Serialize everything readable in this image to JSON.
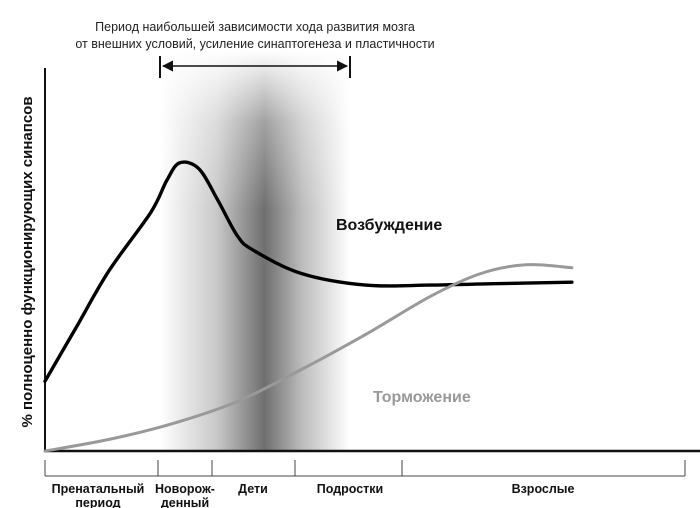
{
  "chart_data": {
    "type": "line",
    "annotation": {
      "lines": [
        "Период наибольшей зависимости хода развития мозга",
        "от внешних условий, усиление синаптогенеза и пластичности"
      ]
    },
    "ylabel": "% полноценно функционирующих синапсов",
    "periods": [
      {
        "lines": [
          "Пренатальный",
          "период"
        ]
      },
      {
        "lines": [
          "Новорож-",
          "денный"
        ]
      },
      {
        "lines": [
          "Дети"
        ]
      },
      {
        "lines": [
          "Подростки"
        ]
      },
      {
        "lines": [
          "Взрослые"
        ]
      }
    ],
    "x_range": [
      0,
      100
    ],
    "y_range": [
      0,
      100
    ],
    "grid": false,
    "series": [
      {
        "name": "Возбуждение",
        "color": "#000000",
        "points": [
          [
            0,
            24
          ],
          [
            5,
            43
          ],
          [
            10,
            62
          ],
          [
            16.5,
            82
          ],
          [
            19,
            93
          ],
          [
            21,
            99
          ],
          [
            24,
            97
          ],
          [
            27,
            86
          ],
          [
            30,
            74
          ],
          [
            32.5,
            69
          ],
          [
            40,
            61
          ],
          [
            50,
            57
          ],
          [
            60,
            57
          ],
          [
            70,
            57.5
          ],
          [
            82.2,
            58
          ]
        ]
      },
      {
        "name": "Торможение",
        "color": "#999999",
        "points": [
          [
            0,
            0
          ],
          [
            10,
            4
          ],
          [
            20,
            9.5
          ],
          [
            30,
            17
          ],
          [
            40,
            28
          ],
          [
            50,
            40
          ],
          [
            60,
            53
          ],
          [
            68,
            61
          ],
          [
            75,
            64
          ],
          [
            82.2,
            63
          ]
        ]
      }
    ]
  }
}
